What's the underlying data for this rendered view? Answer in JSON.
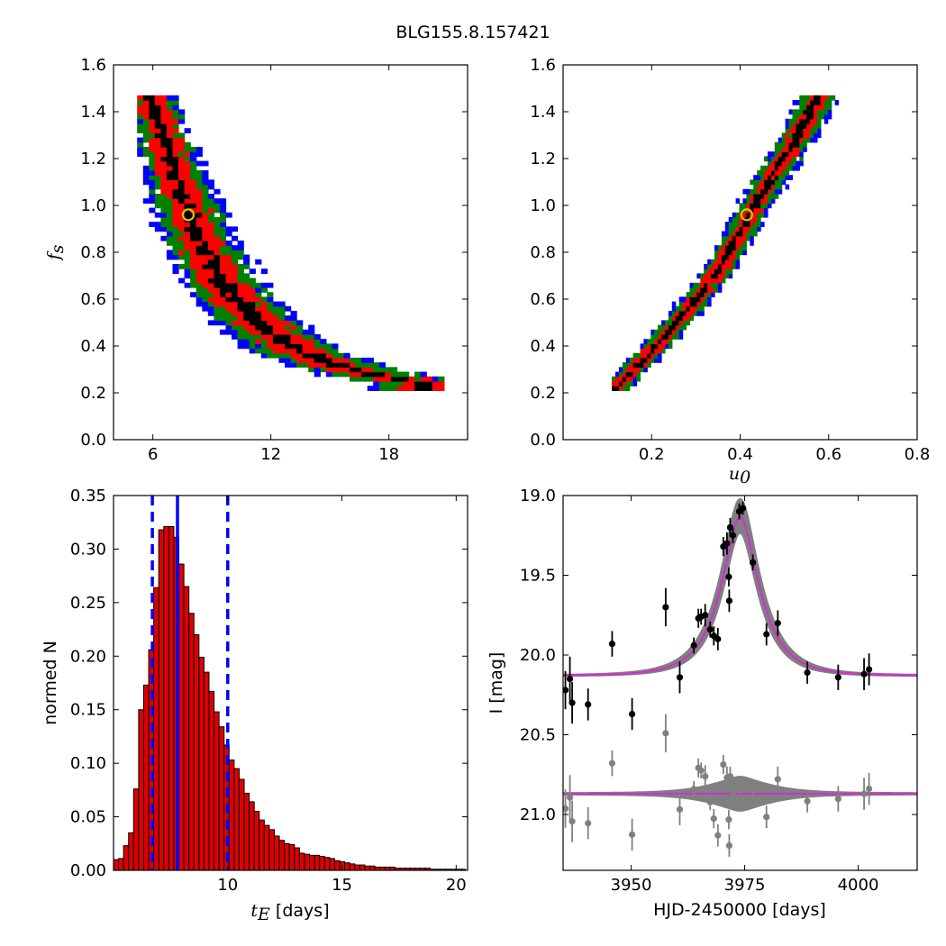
{
  "suptitle": "BLG155.8.157421",
  "colors": {
    "cl1": "#000000",
    "cl2": "#ff0000",
    "cl3": "#008000",
    "cl4": "#0000ff",
    "best_fit_marker": "#d4c800",
    "hist_fill": "#dd0000",
    "hist_edge": "#000000",
    "median_line": "#0000ff",
    "model_curve": "#cc33cc",
    "model_band": "#808080",
    "data_points": "#000000",
    "residual_points": "#808080"
  },
  "chart_data": [
    {
      "id": "tE_vs_fs",
      "type": "heatmap",
      "title": "",
      "xlabel": "",
      "ylabel": "f_s",
      "ylabel_main": "f",
      "ylabel_sub": "s",
      "xlim": [
        4,
        22
      ],
      "ylim": [
        0.0,
        1.6
      ],
      "xticks": [
        6,
        12,
        18
      ],
      "yticks": [
        0.0,
        0.2,
        0.4,
        0.6,
        0.8,
        1.0,
        1.2,
        1.4,
        1.6
      ],
      "xtick_labels": [
        "6",
        "12",
        "18"
      ],
      "ytick_labels": [
        "0.0",
        "0.2",
        "0.4",
        "0.6",
        "0.8",
        "1.0",
        "1.2",
        "1.4",
        "1.6"
      ],
      "description_levels": [
        "1-sigma (black)",
        "2-sigma (red)",
        "3-sigma (green)",
        "outer (blue)"
      ],
      "ridge": [
        [
          5.8,
          1.45
        ],
        [
          6.5,
          1.25
        ],
        [
          7.3,
          1.05
        ],
        [
          8.2,
          0.85
        ],
        [
          9.3,
          0.67
        ],
        [
          10.5,
          0.55
        ],
        [
          11.8,
          0.45
        ],
        [
          13.3,
          0.37
        ],
        [
          15.0,
          0.31
        ],
        [
          17.0,
          0.27
        ],
        [
          19.5,
          0.23
        ]
      ],
      "bin": {
        "dx": 0.3,
        "dy": 0.02
      },
      "x_range": [
        5.2,
        20.5
      ],
      "y_range": [
        0.21,
        1.45
      ],
      "widths": [
        0.55,
        1.6,
        2.5,
        3.3
      ],
      "best_fit": {
        "x": 7.8,
        "y": 0.96
      }
    },
    {
      "id": "u0_vs_fs",
      "type": "heatmap",
      "title": "",
      "xlabel": "u_0",
      "xlabel_main": "u",
      "xlabel_sub": "0",
      "ylabel": "",
      "xlim": [
        0.0,
        0.8
      ],
      "ylim": [
        0.0,
        1.6
      ],
      "xticks": [
        0.2,
        0.4,
        0.6,
        0.8
      ],
      "yticks": [
        0.0,
        0.2,
        0.4,
        0.6,
        0.8,
        1.0,
        1.2,
        1.4,
        1.6
      ],
      "xtick_labels": [
        "0.2",
        "0.4",
        "0.6",
        "0.8"
      ],
      "ytick_labels": [
        "0.0",
        "0.2",
        "0.4",
        "0.6",
        "0.8",
        "1.0",
        "1.2",
        "1.4",
        "1.6"
      ],
      "ridge": [
        [
          0.115,
          0.21
        ],
        [
          0.2,
          0.38
        ],
        [
          0.28,
          0.55
        ],
        [
          0.35,
          0.72
        ],
        [
          0.42,
          0.96
        ],
        [
          0.48,
          1.15
        ],
        [
          0.53,
          1.3
        ],
        [
          0.57,
          1.45
        ]
      ],
      "bin": {
        "dx": 0.008,
        "dy": 0.02
      },
      "x_range": [
        0.11,
        0.62
      ],
      "y_range": [
        0.21,
        1.45
      ],
      "widths": [
        0.013,
        0.033,
        0.055,
        0.07
      ],
      "best_fit": {
        "x": 0.415,
        "y": 0.96
      }
    },
    {
      "id": "tE_histogram",
      "type": "bar",
      "title": "",
      "xlabel": "t_E [days]",
      "xlabel_main": "t",
      "xlabel_sub": "E",
      "xlabel_suffix": " [days]",
      "ylabel": "normed N",
      "xlim": [
        5.0,
        20.5
      ],
      "ylim": [
        0.0,
        0.35
      ],
      "xticks": [
        10,
        15,
        20
      ],
      "yticks": [
        0.0,
        0.05,
        0.1,
        0.15,
        0.2,
        0.25,
        0.3,
        0.35
      ],
      "xtick_labels": [
        "10",
        "15",
        "20"
      ],
      "ytick_labels": [
        "0.00",
        "0.05",
        "0.10",
        "0.15",
        "0.20",
        "0.25",
        "0.30",
        "0.35"
      ],
      "bin_start": 5.0,
      "bin_width": 0.22,
      "values": [
        0.01,
        0.011,
        0.023,
        0.035,
        0.076,
        0.15,
        0.173,
        0.206,
        0.264,
        0.318,
        0.321,
        0.321,
        0.311,
        0.286,
        0.265,
        0.24,
        0.22,
        0.199,
        0.185,
        0.167,
        0.148,
        0.134,
        0.117,
        0.103,
        0.095,
        0.085,
        0.072,
        0.064,
        0.055,
        0.047,
        0.042,
        0.038,
        0.032,
        0.028,
        0.025,
        0.024,
        0.021,
        0.016,
        0.015,
        0.014,
        0.014,
        0.013,
        0.012,
        0.011,
        0.009,
        0.008,
        0.007,
        0.006,
        0.005,
        0.005,
        0.004,
        0.004,
        0.003,
        0.003,
        0.003,
        0.003,
        0.002,
        0.002,
        0.002,
        0.002,
        0.002,
        0.002,
        0.002,
        0.001,
        0.001,
        0.001,
        0.001,
        0.001,
        0.001,
        0.001
      ],
      "median": 7.8,
      "lower": 6.7,
      "upper": 10.0
    },
    {
      "id": "light_curve",
      "type": "scatter",
      "title": "",
      "xlabel": "HJD-2450000 [days]",
      "ylabel": "I [mag]",
      "xlim": [
        3935,
        4013
      ],
      "ylim": [
        21.35,
        19.0
      ],
      "xticks": [
        3950,
        3975,
        4000
      ],
      "yticks": [
        19.0,
        19.5,
        20.0,
        20.5,
        21.0
      ],
      "xtick_labels": [
        "3950",
        "3975",
        "4000"
      ],
      "ytick_labels": [
        "19.0",
        "19.5",
        "20.0",
        "20.5",
        "21.0"
      ],
      "model": {
        "t0": 3974.0,
        "tE": 7.8,
        "u0": 0.415,
        "base_mag": 20.13,
        "fs": 0.96
      },
      "residual_offset": 20.87,
      "data": [
        {
          "x": 3935.5,
          "y": 20.22,
          "err": 0.12
        },
        {
          "x": 3936.5,
          "y": 20.15,
          "err": 0.14
        },
        {
          "x": 3937.0,
          "y": 20.3,
          "err": 0.13
        },
        {
          "x": 3940.5,
          "y": 20.31,
          "err": 0.1
        },
        {
          "x": 3945.8,
          "y": 19.93,
          "err": 0.08
        },
        {
          "x": 3950.2,
          "y": 20.37,
          "err": 0.1
        },
        {
          "x": 3957.6,
          "y": 19.7,
          "err": 0.12
        },
        {
          "x": 3960.7,
          "y": 20.14,
          "err": 0.1
        },
        {
          "x": 3963.8,
          "y": 19.94,
          "err": 0.05
        },
        {
          "x": 3964.8,
          "y": 19.77,
          "err": 0.06
        },
        {
          "x": 3965.4,
          "y": 19.76,
          "err": 0.05
        },
        {
          "x": 3966.3,
          "y": 19.75,
          "err": 0.07
        },
        {
          "x": 3967.4,
          "y": 19.84,
          "err": 0.05
        },
        {
          "x": 3968.2,
          "y": 19.88,
          "err": 0.06
        },
        {
          "x": 3969.1,
          "y": 19.9,
          "err": 0.07
        },
        {
          "x": 3970.3,
          "y": 19.32,
          "err": 0.06
        },
        {
          "x": 3971.1,
          "y": 19.3,
          "err": 0.07
        },
        {
          "x": 3971.5,
          "y": 19.51,
          "err": 0.06
        },
        {
          "x": 3971.6,
          "y": 19.66,
          "err": 0.07
        },
        {
          "x": 3971.8,
          "y": 19.2,
          "err": 0.06
        },
        {
          "x": 3972.4,
          "y": 19.25,
          "err": 0.05
        },
        {
          "x": 3973.8,
          "y": 19.1,
          "err": 0.05
        },
        {
          "x": 3974.6,
          "y": 19.08,
          "err": 0.04
        },
        {
          "x": 3976.8,
          "y": 19.42,
          "err": 0.05
        },
        {
          "x": 3979.8,
          "y": 19.87,
          "err": 0.07
        },
        {
          "x": 3982.3,
          "y": 19.8,
          "err": 0.08
        },
        {
          "x": 3988.8,
          "y": 20.11,
          "err": 0.07
        },
        {
          "x": 3995.6,
          "y": 20.14,
          "err": 0.08
        },
        {
          "x": 4001.3,
          "y": 20.12,
          "err": 0.1
        },
        {
          "x": 4002.4,
          "y": 20.09,
          "err": 0.1
        }
      ]
    }
  ]
}
